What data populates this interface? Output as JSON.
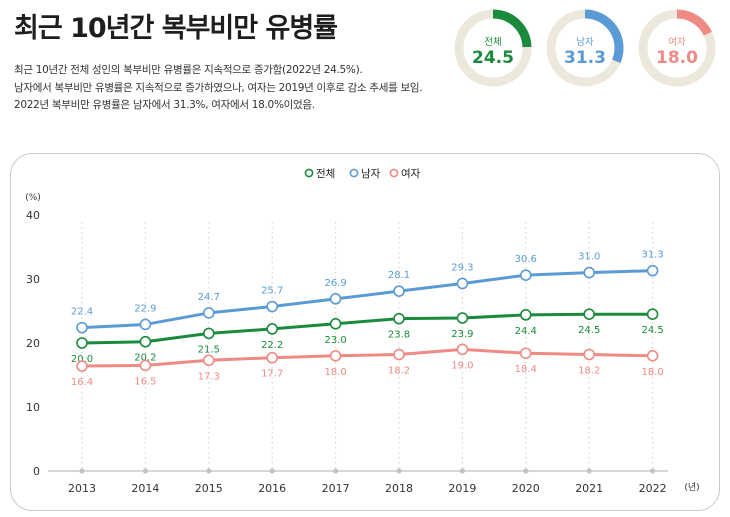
{
  "header": {
    "title": "최근 10년간 복부비만 유병률",
    "description": [
      "최근 10년간 전체 성인의 복부비만 유병률은 지속적으로 증가함(2022년 24.5%).",
      "남자에서 복부비만 유병률은 지속적으로 증가하였으나, 여자는 2019년 이후로 감소 추세를 보임.",
      "2022년 복부비만 유병률은 남자에서 31.3%, 여자에서 18.0%이었음."
    ]
  },
  "summary": [
    {
      "label": "전체",
      "value": "24.5",
      "percent": 24.5,
      "color": "#1a8a3c"
    },
    {
      "label": "남자",
      "value": "31.3",
      "percent": 31.3,
      "color": "#5b9bd5"
    },
    {
      "label": "여자",
      "value": "18.0",
      "percent": 18.0,
      "color": "#f08a84"
    }
  ],
  "chart_data": {
    "type": "line",
    "title": "",
    "categories": [
      "2013",
      "2014",
      "2015",
      "2016",
      "2017",
      "2018",
      "2019",
      "2020",
      "2021",
      "2022"
    ],
    "ylabel": "(%)",
    "xlabel": "(년)",
    "ylim": [
      0,
      40
    ],
    "yticks": [
      0,
      10,
      20,
      30,
      40
    ],
    "legend_position": "top-center",
    "series": [
      {
        "name": "전체",
        "color": "#1a8a3c",
        "values": [
          20.0,
          20.2,
          21.5,
          22.2,
          23.0,
          23.8,
          23.9,
          24.4,
          24.5,
          24.5
        ],
        "labels": [
          "20.0",
          "20.2",
          "21.5",
          "22.2",
          "23.0",
          "23.8",
          "23.9",
          "24.4",
          "24.5",
          "24.5"
        ]
      },
      {
        "name": "남자",
        "color": "#5b9bd5",
        "values": [
          22.4,
          22.9,
          24.7,
          25.7,
          26.9,
          28.1,
          29.3,
          30.6,
          31.0,
          31.3
        ],
        "labels": [
          "22.4",
          "22.9",
          "24.7",
          "25.7",
          "26.9",
          "28.1",
          "29.3",
          "30.6",
          "31.0",
          "31.3"
        ]
      },
      {
        "name": "여자",
        "color": "#f08a84",
        "values": [
          16.4,
          16.5,
          17.3,
          17.7,
          18.0,
          18.2,
          19.0,
          18.4,
          18.2,
          18.0
        ],
        "labels": [
          "16.4",
          "16.5",
          "17.3",
          "17.7",
          "18.0",
          "18.2",
          "19.0",
          "18.4",
          "18.2",
          "18.0"
        ]
      }
    ]
  }
}
